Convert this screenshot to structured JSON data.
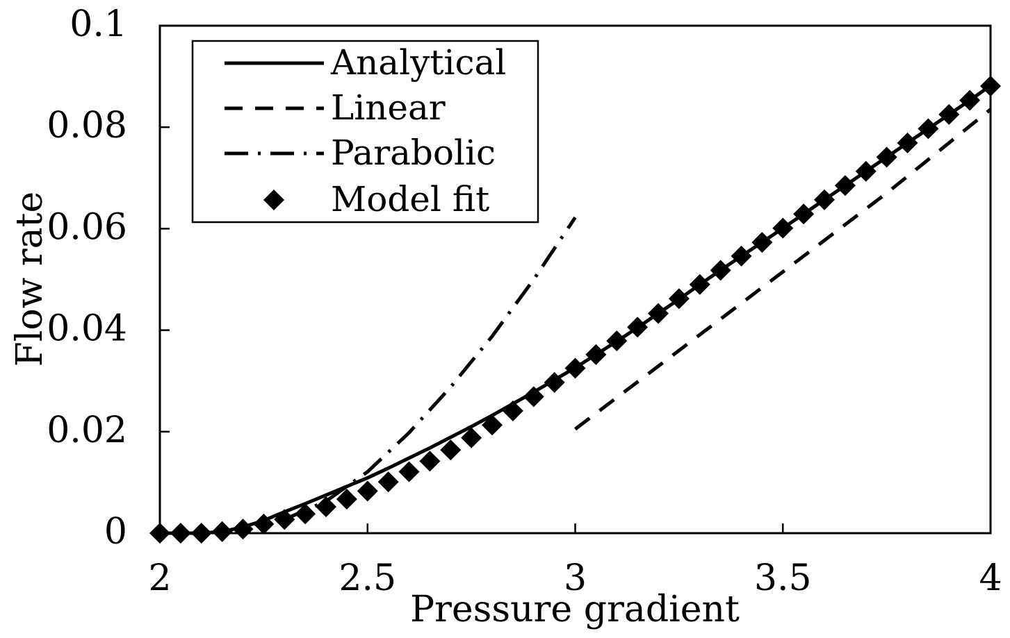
{
  "chart_data": {
    "type": "line",
    "title": "",
    "xlabel": "Pressure gradient",
    "ylabel": "Flow rate",
    "xlim": [
      2,
      4
    ],
    "ylim": [
      0,
      0.1
    ],
    "x_ticks": [
      2,
      2.5,
      3,
      3.5,
      4
    ],
    "x_tick_labels": [
      "2",
      "2.5",
      "3",
      "3.5",
      "4"
    ],
    "y_ticks": [
      0,
      0.02,
      0.04,
      0.06,
      0.08,
      0.1
    ],
    "y_tick_labels": [
      "0",
      "0.02",
      "0.04",
      "0.06",
      "0.08",
      "0.1"
    ],
    "grid": false,
    "legend_position": "top-left",
    "series": [
      {
        "name": "Analytical",
        "style": "solid",
        "x": [
          2.0,
          2.05,
          2.1,
          2.15,
          2.2,
          2.25,
          2.3,
          2.35,
          2.4,
          2.45,
          2.5,
          2.55,
          2.6,
          2.65,
          2.7,
          2.75,
          2.8,
          2.85,
          2.9,
          2.95,
          3.0,
          3.05,
          3.1,
          3.15,
          3.2,
          3.25,
          3.3,
          3.35,
          3.4,
          3.45,
          3.5,
          3.55,
          3.6,
          3.65,
          3.7,
          3.75,
          3.8,
          3.85,
          3.9,
          3.95,
          4.0
        ],
        "y": [
          0.0,
          0.0,
          0.0,
          0.0003,
          0.0012,
          0.0025,
          0.0042,
          0.0058,
          0.0075,
          0.0092,
          0.0109,
          0.0128,
          0.0148,
          0.0168,
          0.0189,
          0.021,
          0.0232,
          0.0255,
          0.0278,
          0.0302,
          0.0326,
          0.0352,
          0.0378,
          0.0405,
          0.0433,
          0.0461,
          0.049,
          0.0518,
          0.0546,
          0.0573,
          0.0601,
          0.0629,
          0.0657,
          0.0685,
          0.0713,
          0.0741,
          0.0769,
          0.0797,
          0.0825,
          0.0853,
          0.0882
        ]
      },
      {
        "name": "Linear",
        "style": "dashed",
        "x": [
          3.0,
          3.25,
          3.5,
          3.75,
          4.0
        ],
        "y": [
          0.0205,
          0.036,
          0.0515,
          0.067,
          0.0835
        ]
      },
      {
        "name": "Parabolic",
        "style": "dashdot",
        "x": [
          2.3,
          2.4,
          2.5,
          2.6,
          2.7,
          2.8,
          2.9,
          3.0
        ],
        "y": [
          0.0027,
          0.0063,
          0.0121,
          0.0198,
          0.0288,
          0.0388,
          0.05,
          0.0622
        ]
      },
      {
        "name": "Model fit",
        "style": "marker-diamond",
        "x": [
          2.0,
          2.05,
          2.1,
          2.15,
          2.2,
          2.25,
          2.3,
          2.35,
          2.4,
          2.45,
          2.5,
          2.55,
          2.6,
          2.65,
          2.7,
          2.75,
          2.8,
          2.85,
          2.9,
          2.95,
          3.0,
          3.05,
          3.1,
          3.15,
          3.2,
          3.25,
          3.3,
          3.35,
          3.4,
          3.45,
          3.5,
          3.55,
          3.6,
          3.65,
          3.7,
          3.75,
          3.8,
          3.85,
          3.9,
          3.95,
          4.0
        ],
        "y": [
          0.0,
          0.0,
          0.0,
          0.0003,
          0.0008,
          0.0018,
          0.0027,
          0.0038,
          0.0052,
          0.0067,
          0.0083,
          0.0101,
          0.0121,
          0.0142,
          0.0164,
          0.0188,
          0.0213,
          0.0241,
          0.0269,
          0.0297,
          0.0325,
          0.0352,
          0.0379,
          0.0406,
          0.0433,
          0.0462,
          0.049,
          0.0518,
          0.0546,
          0.0573,
          0.0601,
          0.0629,
          0.0657,
          0.0685,
          0.0713,
          0.0741,
          0.0769,
          0.0797,
          0.0825,
          0.0853,
          0.0881
        ]
      }
    ]
  }
}
